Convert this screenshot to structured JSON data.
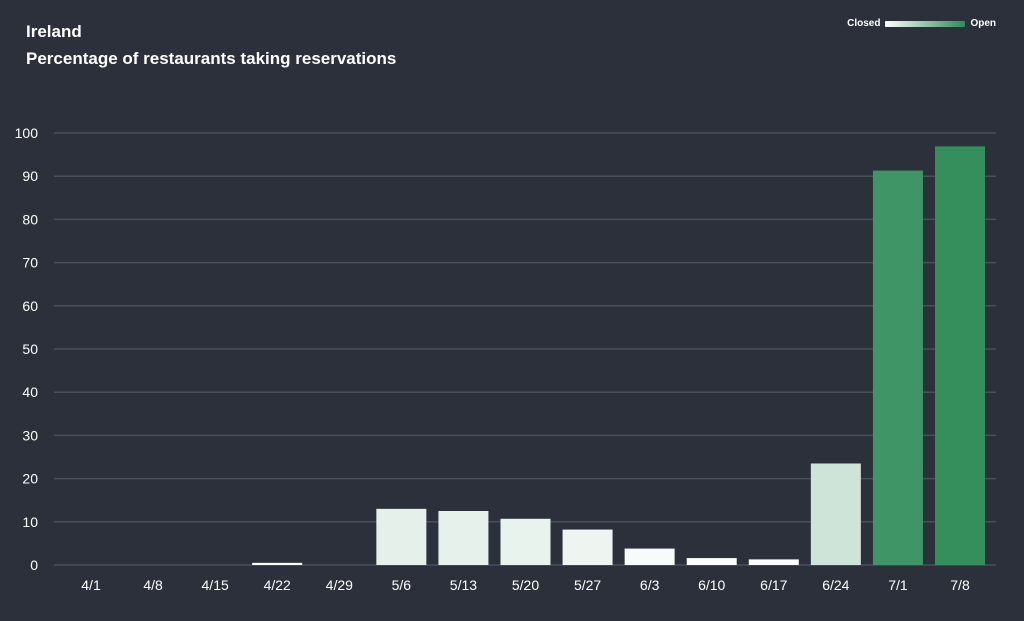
{
  "chart_data": {
    "type": "bar",
    "title": "Ireland",
    "subtitle": "Percentage of restaurants taking reservations",
    "categories": [
      "4/1",
      "4/8",
      "4/15",
      "4/22",
      "4/29",
      "5/6",
      "5/13",
      "5/20",
      "5/27",
      "6/3",
      "6/10",
      "6/17",
      "6/24",
      "7/1",
      "7/8"
    ],
    "values": [
      0,
      0,
      0,
      0.5,
      0,
      13,
      12.5,
      10.7,
      8.2,
      3.8,
      1.6,
      1.3,
      23.5,
      91.3,
      96.9
    ],
    "ylim": [
      0,
      100
    ],
    "yticks": [
      0,
      10,
      20,
      30,
      40,
      50,
      60,
      70,
      80,
      90,
      100
    ],
    "grid": true,
    "legend": {
      "placement": "top-right",
      "low_label": "Closed",
      "high_label": "Open",
      "low_color": "#ffffff",
      "high_color": "#2e8b57"
    }
  },
  "colors": {
    "background": "#2b303b",
    "gridline": "#4a4f5c",
    "text": "#ffffff"
  }
}
